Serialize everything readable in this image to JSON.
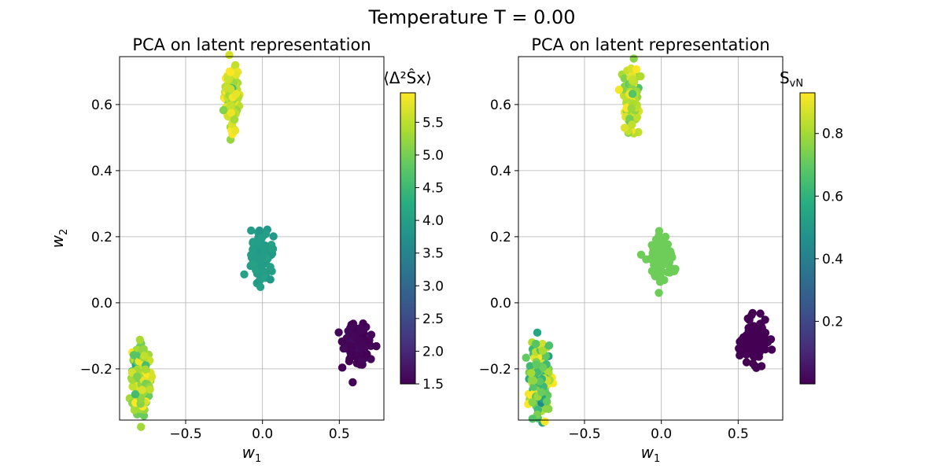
{
  "figure": {
    "suptitle": "Temperature T = 0.00"
  },
  "chart_data": [
    {
      "type": "scatter",
      "title": "PCA on latent representation",
      "xlabel": "w",
      "xlabel_sub": "1",
      "ylabel": "w",
      "ylabel_sub": "2",
      "xlim": [
        -0.93,
        0.79
      ],
      "ylim": [
        -0.355,
        0.745
      ],
      "xticks": [
        -0.5,
        0.0,
        0.5
      ],
      "xtick_labels": [
        "−0.5",
        "0.0",
        "0.5"
      ],
      "yticks": [
        -0.2,
        0.0,
        0.2,
        0.4,
        0.6
      ],
      "ytick_labels": [
        "−0.2",
        "0.0",
        "0.2",
        "0.4",
        "0.6"
      ],
      "grid": true,
      "colormap": "viridis",
      "colorbar": {
        "label": "⟨Δ²Ŝx⟩",
        "range": [
          1.5,
          5.95
        ],
        "ticks": [
          1.5,
          2.0,
          2.5,
          3.0,
          3.5,
          4.0,
          4.5,
          5.0,
          5.5
        ],
        "tick_labels": [
          "1.5",
          "2.0",
          "2.5",
          "3.0",
          "3.5",
          "4.0",
          "4.5",
          "5.0",
          "5.5"
        ]
      },
      "clusters": [
        {
          "center": [
            -0.2,
            0.625
          ],
          "spread": [
            0.025,
            0.05
          ],
          "color_value": 5.6,
          "color_spread": 0.3,
          "n": 120
        },
        {
          "center": [
            0.0,
            0.14
          ],
          "spread": [
            0.035,
            0.035
          ],
          "color_value": 3.95,
          "color_spread": 0.05,
          "n": 100
        },
        {
          "center": [
            0.61,
            -0.12
          ],
          "spread": [
            0.04,
            0.03
          ],
          "color_value": 1.55,
          "color_spread": 0.03,
          "n": 150
        },
        {
          "center": [
            -0.79,
            -0.23
          ],
          "spread": [
            0.03,
            0.05
          ],
          "color_value": 5.2,
          "color_spread": 0.4,
          "n": 180
        }
      ]
    },
    {
      "type": "scatter",
      "title": "PCA on latent representation",
      "xlabel": "w",
      "xlabel_sub": "1",
      "ylabel": "",
      "xlim": [
        -0.93,
        0.79
      ],
      "ylim": [
        -0.355,
        0.745
      ],
      "xticks": [
        -0.5,
        0.0,
        0.5
      ],
      "xtick_labels": [
        "−0.5",
        "0.0",
        "0.5"
      ],
      "yticks": [
        -0.2,
        0.0,
        0.2,
        0.4,
        0.6
      ],
      "ytick_labels": [
        "−0.2",
        "0.0",
        "0.2",
        "0.4",
        "0.6"
      ],
      "grid": true,
      "colormap": "viridis",
      "colorbar": {
        "label": "S",
        "label_sub": "vN",
        "range": [
          0.0,
          0.93
        ],
        "ticks": [
          0.2,
          0.4,
          0.6,
          0.8
        ],
        "tick_labels": [
          "0.2",
          "0.4",
          "0.6",
          "0.8"
        ]
      },
      "clusters": [
        {
          "center": [
            -0.2,
            0.625
          ],
          "spread": [
            0.025,
            0.05
          ],
          "color_value": 0.82,
          "color_spread": 0.06,
          "n": 110
        },
        {
          "center": [
            0.0,
            0.14
          ],
          "spread": [
            0.035,
            0.035
          ],
          "color_value": 0.72,
          "color_spread": 0.0,
          "n": 100
        },
        {
          "center": [
            0.61,
            -0.12
          ],
          "spread": [
            0.04,
            0.03
          ],
          "color_value": 0.0,
          "color_spread": 0.0,
          "n": 150
        },
        {
          "center": [
            -0.79,
            -0.23
          ],
          "spread": [
            0.03,
            0.05
          ],
          "color_value": 0.7,
          "color_spread": 0.14,
          "n": 170
        }
      ]
    }
  ]
}
